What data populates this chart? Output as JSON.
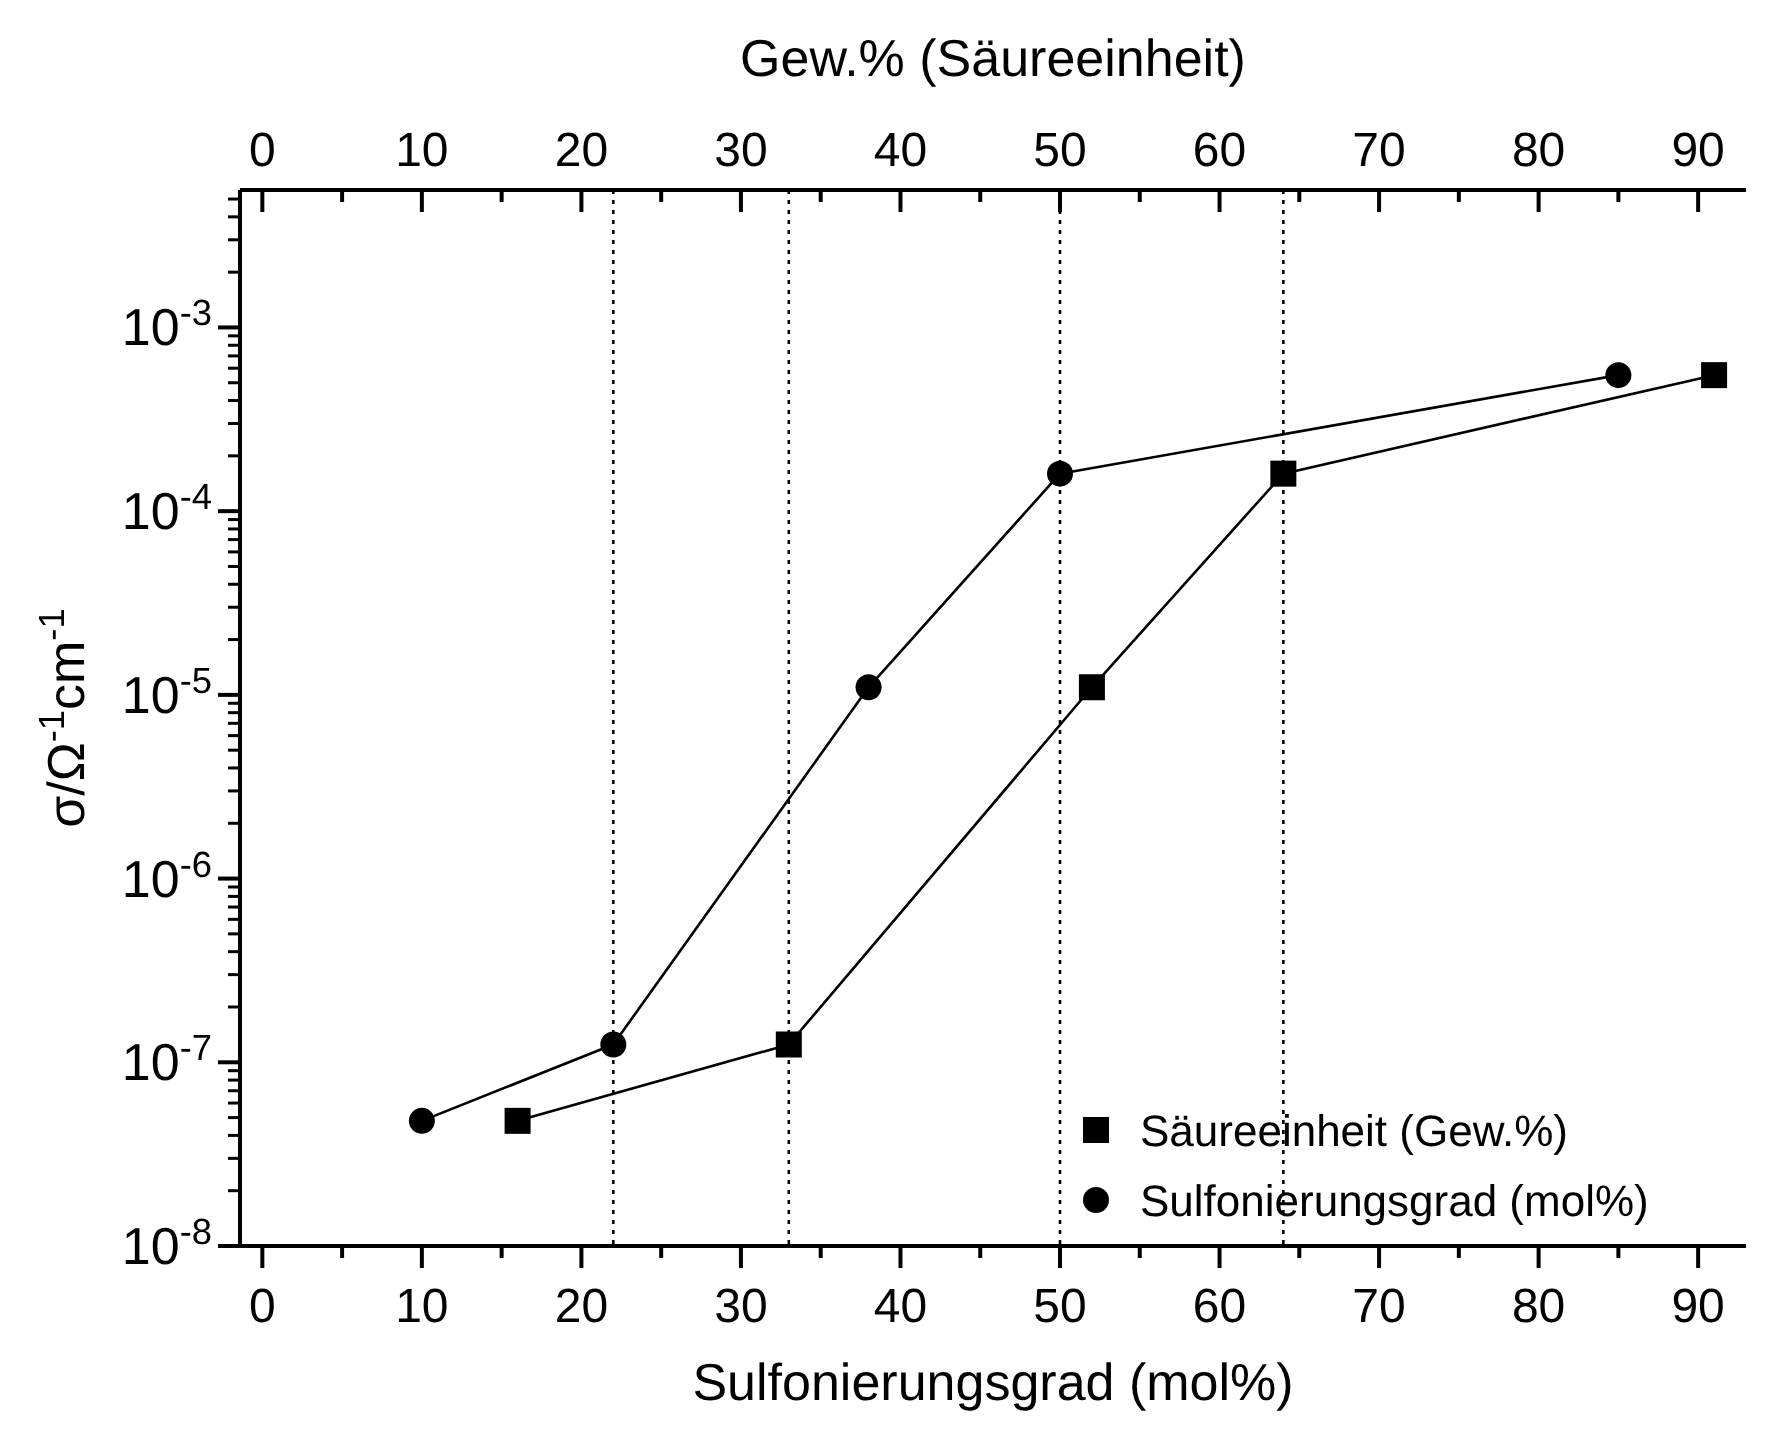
{
  "chart_data": {
    "type": "line",
    "xlabel": "Sulfonierungsgrad (mol%)",
    "x2label": "Gew.% (Säureeinheit)",
    "ylabel": "σ/Ω$^{-1}$cm$^{-1}$",
    "xlim": [
      -1.4,
      93
    ],
    "x2lim": [
      -1.4,
      93
    ],
    "xticks": [
      0,
      {
        "value": 5,
        "label": null
      },
      10,
      {
        "value": 15,
        "label": null
      },
      20,
      {
        "value": 25,
        "label": null
      },
      30,
      {
        "value": 35,
        "label": null
      },
      40,
      {
        "value": 45,
        "label": null
      },
      50,
      {
        "value": 55,
        "label": null
      },
      60,
      {
        "value": 65,
        "label": null
      },
      70,
      {
        "value": 75,
        "label": null
      },
      80,
      {
        "value": 85,
        "label": null
      },
      90
    ],
    "x2ticks": [
      0,
      {
        "value": 5,
        "label": null
      },
      10,
      {
        "value": 15,
        "label": null
      },
      20,
      {
        "value": 25,
        "label": null
      },
      30,
      {
        "value": 35,
        "label": null
      },
      40,
      {
        "value": 45,
        "label": null
      },
      50,
      {
        "value": 55,
        "label": null
      },
      60,
      {
        "value": 65,
        "label": null
      },
      70,
      {
        "value": 75,
        "label": null
      },
      80,
      {
        "value": 85,
        "label": null
      },
      90
    ],
    "log": "y",
    "ylim": [
      1e-08,
      0.0056
    ],
    "yticks": [
      {
        "value": 1e-08,
        "label": "10$^{-8}$"
      },
      {
        "value": 2e-08,
        "label": null
      },
      {
        "value": 3e-08,
        "label": null
      },
      {
        "value": 4e-08,
        "label": null
      },
      {
        "value": 5e-08,
        "label": null
      },
      {
        "value": 6e-08,
        "label": null
      },
      {
        "value": 7e-08,
        "label": null
      },
      {
        "value": 8e-08,
        "label": null
      },
      {
        "value": 9e-08,
        "label": null
      },
      {
        "value": 1e-07,
        "label": "10$^{-7}$"
      },
      {
        "value": 2e-07,
        "label": null
      },
      {
        "value": 3e-07,
        "label": null
      },
      {
        "value": 4e-07,
        "label": null
      },
      {
        "value": 5e-07,
        "label": null
      },
      {
        "value": 6e-07,
        "label": null
      },
      {
        "value": 7e-07,
        "label": null
      },
      {
        "value": 8e-07,
        "label": null
      },
      {
        "value": 9e-07,
        "label": null
      },
      {
        "value": 1e-06,
        "label": "10$^{-6}$"
      },
      {
        "value": 2e-06,
        "label": null
      },
      {
        "value": 3e-06,
        "label": null
      },
      {
        "value": 4e-06,
        "label": null
      },
      {
        "value": 5e-06,
        "label": null
      },
      {
        "value": 6e-06,
        "label": null
      },
      {
        "value": 7e-06,
        "label": null
      },
      {
        "value": 8e-06,
        "label": null
      },
      {
        "value": 9e-06,
        "label": null
      },
      {
        "value": 1e-05,
        "label": "10$^{-5}$"
      },
      {
        "value": 2e-05,
        "label": null
      },
      {
        "value": 3e-05,
        "label": null
      },
      {
        "value": 4e-05,
        "label": null
      },
      {
        "value": 5e-05,
        "label": null
      },
      {
        "value": 6e-05,
        "label": null
      },
      {
        "value": 7e-05,
        "label": null
      },
      {
        "value": 8e-05,
        "label": null
      },
      {
        "value": 9e-05,
        "label": null
      },
      {
        "value": 0.0001,
        "label": "10$^{-4}$"
      },
      {
        "value": 0.0002,
        "label": null
      },
      {
        "value": 0.0003,
        "label": null
      },
      {
        "value": 0.0004,
        "label": null
      },
      {
        "value": 0.0005,
        "label": null
      },
      {
        "value": 0.0006,
        "label": null
      },
      {
        "value": 0.0007,
        "label": null
      },
      {
        "value": 0.0008,
        "label": null
      },
      {
        "value": 0.0009,
        "label": null
      },
      {
        "value": 0.001,
        "label": "10$^{-3}$"
      },
      {
        "value": 0.002,
        "label": null
      },
      {
        "value": 0.003,
        "label": null
      },
      {
        "value": 0.004,
        "label": null
      },
      {
        "value": 0.005,
        "label": null
      }
    ],
    "grid": false,
    "legend": "bottom right",
    "series": [
      {
        "name": "Säureeinheit (Gew.%)",
        "color": "#000000",
        "marker": "square",
        "x": [
          16,
          33,
          52,
          64,
          91
        ],
        "values": [
          4.8e-08,
          1.25e-07,
          1.1e-05,
          0.00016,
          0.00055
        ]
      },
      {
        "name": "Sulfonierungsgrad (mol%)",
        "color": "#000000",
        "marker": "circle",
        "x": [
          10,
          22,
          38,
          50,
          85
        ],
        "values": [
          4.8e-08,
          1.25e-07,
          1.1e-05,
          0.00016,
          0.00055
        ]
      }
    ],
    "ref_lines": [
      {
        "axis": "x",
        "value": 22,
        "line_style": "dotted",
        "color": "#000000"
      },
      {
        "axis": "x",
        "value": 33,
        "line_style": "dotted",
        "color": "#000000"
      },
      {
        "axis": "x",
        "value": 50,
        "line_style": "dotted",
        "color": "#000000"
      },
      {
        "axis": "x",
        "value": 64,
        "line_style": "dotted",
        "color": "#000000"
      }
    ]
  }
}
